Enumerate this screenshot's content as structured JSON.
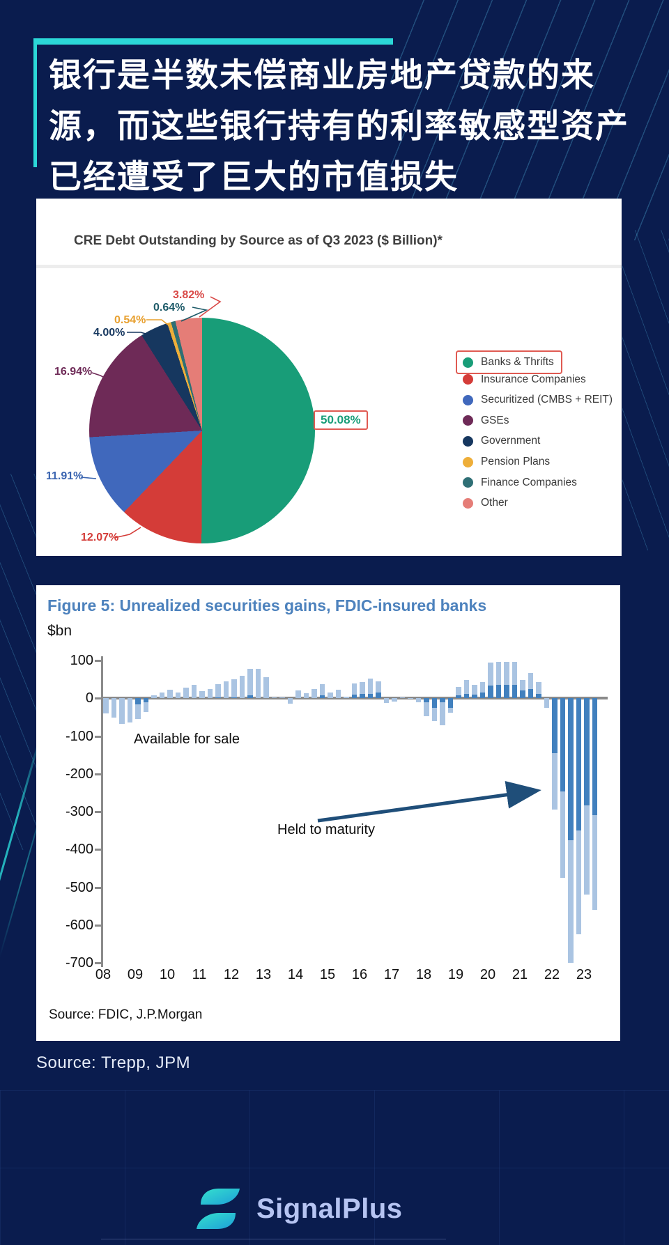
{
  "page": {
    "bg_color": "#0a1c4e",
    "accent_cyan": "#2bd8d8",
    "headline_lines": [
      "银行是半数未偿商业房地产贷款的来",
      "源，而这些银行持有的利率敏感型资产",
      "已经遭受了巨大的市值损失"
    ]
  },
  "chart_data": [
    {
      "type": "pie",
      "title": "CRE Debt Outstanding by Source as of Q3 2023 ($ Billion)*",
      "legend_position": "right",
      "highlighted_slice": "Banks & Thrifts",
      "slices": [
        {
          "label": "Banks & Thrifts",
          "value_pct": 50.08,
          "display": "50.08%",
          "color": "#189d78",
          "label_color": "#189d78",
          "highlighted": true
        },
        {
          "label": "Insurance Companies",
          "value_pct": 12.07,
          "display": "12.07%",
          "color": "#d43c38",
          "label_color": "#d43c38",
          "highlighted": false
        },
        {
          "label": "Securitized (CMBS + REIT)",
          "value_pct": 11.91,
          "display": "11.91%",
          "color": "#4068bc",
          "label_color": "#3a64b0",
          "highlighted": false
        },
        {
          "label": "GSEs",
          "value_pct": 16.94,
          "display": "16.94%",
          "color": "#6e2a57",
          "label_color": "#6e2a57",
          "highlighted": false
        },
        {
          "label": "Government",
          "value_pct": 4.0,
          "display": "4.00%",
          "color": "#16375f",
          "label_color": "#16375f",
          "highlighted": false
        },
        {
          "label": "Pension Plans",
          "value_pct": 0.54,
          "display": "0.54%",
          "color": "#eeae39",
          "label_color": "#e8a02f",
          "highlighted": false
        },
        {
          "label": "Finance Companies",
          "value_pct": 0.64,
          "display": "0.64%",
          "color": "#2f6f75",
          "label_color": "#1d5a68",
          "highlighted": false
        },
        {
          "label": "Other",
          "value_pct": 3.82,
          "display": "3.82%",
          "color": "#e57d77",
          "label_color": "#d94a48",
          "highlighted": false
        }
      ],
      "note": "slices drawn clockwise from 12 o'clock in listed order"
    },
    {
      "type": "bar",
      "stacked": true,
      "title": "Figure 5: Unrealized securities gains, FDIC-insured banks",
      "ylabel": "$bn",
      "ylim": [
        -700,
        100
      ],
      "yticks": [
        100,
        0,
        -100,
        -200,
        -300,
        -400,
        -500,
        -600,
        -700
      ],
      "grid": false,
      "x_year_labels": [
        "08",
        "09",
        "10",
        "11",
        "12",
        "13",
        "14",
        "15",
        "16",
        "17",
        "18",
        "19",
        "20",
        "21",
        "22",
        "23"
      ],
      "quarters": [
        "08Q1",
        "08Q2",
        "08Q3",
        "08Q4",
        "09Q1",
        "09Q2",
        "09Q3",
        "09Q4",
        "10Q1",
        "10Q2",
        "10Q3",
        "10Q4",
        "11Q1",
        "11Q2",
        "11Q3",
        "11Q4",
        "12Q1",
        "12Q2",
        "12Q3",
        "12Q4",
        "13Q1",
        "13Q2",
        "13Q3",
        "13Q4",
        "14Q1",
        "14Q2",
        "14Q3",
        "14Q4",
        "15Q1",
        "15Q2",
        "15Q3",
        "15Q4",
        "16Q1",
        "16Q2",
        "16Q3",
        "16Q4",
        "17Q1",
        "17Q2",
        "17Q3",
        "17Q4",
        "18Q1",
        "18Q2",
        "18Q3",
        "18Q4",
        "19Q1",
        "19Q2",
        "19Q3",
        "19Q4",
        "20Q1",
        "20Q2",
        "20Q3",
        "20Q4",
        "21Q1",
        "21Q2",
        "21Q3",
        "21Q4",
        "22Q1",
        "22Q2",
        "22Q3",
        "22Q4",
        "23Q1",
        "23Q2"
      ],
      "series": [
        {
          "name": "Held to maturity",
          "color": "#4180be",
          "values": [
            0,
            0,
            0,
            0,
            -17,
            -10,
            0,
            0,
            0,
            0,
            0,
            0,
            0,
            0,
            3,
            0,
            3,
            0,
            7,
            0,
            0,
            0,
            0,
            0,
            0,
            0,
            0,
            8,
            0,
            0,
            0,
            10,
            12,
            12,
            15,
            0,
            0,
            0,
            0,
            0,
            -10,
            -25,
            -10,
            -25,
            8,
            12,
            10,
            15,
            33,
            35,
            36,
            35,
            20,
            24,
            12,
            0,
            -145,
            -247,
            -375,
            -350,
            -284,
            -310
          ]
        },
        {
          "name": "Available for sale",
          "color": "#aac4e2",
          "values": [
            -40,
            -52,
            -67,
            -64,
            -38,
            -27,
            8,
            15,
            22,
            15,
            28,
            35,
            18,
            25,
            35,
            44,
            48,
            60,
            70,
            77,
            55,
            3,
            2,
            -15,
            20,
            13,
            25,
            30,
            15,
            22,
            5,
            30,
            30,
            40,
            30,
            -12,
            -8,
            2,
            -2,
            -10,
            -38,
            -35,
            -62,
            -13,
            22,
            36,
            25,
            27,
            62,
            62,
            61,
            61,
            29,
            43,
            30,
            -25,
            -150,
            -228,
            -325,
            -275,
            -236,
            -250
          ]
        }
      ],
      "annotations": [
        {
          "text": "Available for sale"
        },
        {
          "text": "Held to maturity"
        }
      ],
      "source": "Source: FDIC, J.P.Morgan"
    }
  ],
  "footer": {
    "source_note": "Source: Trepp, JPM",
    "brand": "SignalPlus"
  }
}
